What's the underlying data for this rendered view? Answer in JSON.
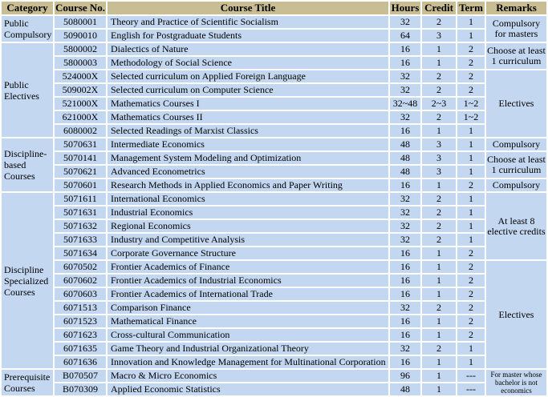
{
  "colors": {
    "header_bg": "#c9bd93",
    "row_bg": "#c3d7f0",
    "grid": "#ffffff",
    "text": "#000000"
  },
  "table": {
    "headers": [
      "Category",
      "Course No.",
      "Course Title",
      "Hours",
      "Credit",
      "Term",
      "Remarks"
    ],
    "rows": [
      {
        "no": "5080001",
        "title": "Theory and Practice of Scientific Socialism",
        "hours": "32",
        "credit": "2",
        "term": "1"
      },
      {
        "no": "5090010",
        "title": "English for Postgraduate Students",
        "hours": "64",
        "credit": "3",
        "term": "1"
      },
      {
        "no": "5800002",
        "title": "Dialectics of Nature",
        "hours": "16",
        "credit": "1",
        "term": "2"
      },
      {
        "no": "5800003",
        "title": "Methodology of Social Science",
        "hours": "16",
        "credit": "1",
        "term": "2"
      },
      {
        "no": "524000X",
        "title": "Selected curriculum on Applied Foreign Language",
        "hours": "32",
        "credit": "2",
        "term": "2"
      },
      {
        "no": "509002X",
        "title": "Selected curriculum on Computer Science",
        "hours": "32",
        "credit": "2",
        "term": "2"
      },
      {
        "no": "521000X",
        "title": "Mathematics Courses  I",
        "hours": "32~48",
        "credit": "2~3",
        "term": "1~2"
      },
      {
        "no": "621000X",
        "title": "Mathematics Courses II",
        "hours": "32",
        "credit": "2",
        "term": "1~2"
      },
      {
        "no": "6080002",
        "title": "Selected Readings of Marxist Classics",
        "hours": "16",
        "credit": "1",
        "term": "1"
      },
      {
        "no": "5070631",
        "title": "Intermediate Economics",
        "hours": "48",
        "credit": "3",
        "term": "1"
      },
      {
        "no": "5070141",
        "title": "Management System Modeling and Optimization",
        "hours": "48",
        "credit": "3",
        "term": "1"
      },
      {
        "no": "5070621",
        "title": "Advanced Econometrics",
        "hours": "48",
        "credit": "3",
        "term": "1"
      },
      {
        "no": "5070601",
        "title": "Research Methods in Applied Economics and Paper Writing",
        "hours": "16",
        "credit": "1",
        "term": "2"
      },
      {
        "no": "5071611",
        "title": "International Economics",
        "hours": "32",
        "credit": "2",
        "term": "1"
      },
      {
        "no": "5071631",
        "title": "Industrial Economics",
        "hours": "32",
        "credit": "2",
        "term": "1"
      },
      {
        "no": "5071632",
        "title": "Regional Economics",
        "hours": "32",
        "credit": "2",
        "term": "1"
      },
      {
        "no": "5071633",
        "title": "Industry and Competitive Analysis",
        "hours": "32",
        "credit": "2",
        "term": "1"
      },
      {
        "no": "5071634",
        "title": "Corporate Governance Structure",
        "hours": "16",
        "credit": "1",
        "term": "2"
      },
      {
        "no": "6070502",
        "title": "Frontier Academics  of Finance",
        "hours": "16",
        "credit": "1",
        "term": "2"
      },
      {
        "no": "6070602",
        "title": "Frontier Academics  of Industrial Economics",
        "hours": "16",
        "credit": "1",
        "term": "2"
      },
      {
        "no": "6070603",
        "title": "Frontier Academics  of International Trade",
        "hours": "16",
        "credit": "1",
        "term": "2"
      },
      {
        "no": "6071513",
        "title": "Comparison Finance",
        "hours": "32",
        "credit": "2",
        "term": "2"
      },
      {
        "no": "6071523",
        "title": "Mathematical Finance",
        "hours": "16",
        "credit": "1",
        "term": "2"
      },
      {
        "no": "6071623",
        "title": "Cross-cultural Communication",
        "hours": "16",
        "credit": "1",
        "term": "2"
      },
      {
        "no": "6071635",
        "title": "Game Theory and Industrial Organizational Theory",
        "hours": "32",
        "credit": "2",
        "term": "1"
      },
      {
        "no": "6071636",
        "title": "Innovation and Knowledge Management for Multinational Corporation",
        "hours": "16",
        "credit": "1",
        "term": "1"
      },
      {
        "no": "B070507",
        "title": "Macro & Micro Economics",
        "hours": "96",
        "credit": "1",
        "term": "---"
      },
      {
        "no": "B070309",
        "title": "Applied Economic Statistics",
        "hours": "48",
        "credit": "1",
        "term": "---"
      }
    ],
    "category_spans": [
      {
        "label": "Public Compulsory",
        "start": 0,
        "span": 2
      },
      {
        "label": "Public Electives",
        "start": 2,
        "span": 7
      },
      {
        "label": "Discipline-based Courses",
        "start": 9,
        "span": 4
      },
      {
        "label": "Discipline Specialized Courses",
        "start": 13,
        "span": 13
      },
      {
        "label": "Prerequisite Courses",
        "start": 26,
        "span": 2
      }
    ],
    "remarks_spans": [
      {
        "label": "Compulsory for masters",
        "start": 0,
        "span": 2,
        "small": false
      },
      {
        "label": "Choose at least 1 curriculum",
        "start": 2,
        "span": 2,
        "small": false
      },
      {
        "label": "Electives",
        "start": 4,
        "span": 5,
        "small": false
      },
      {
        "label": "Compulsory",
        "start": 9,
        "span": 1,
        "small": false
      },
      {
        "label": "Choose at least 1 curriculum",
        "start": 10,
        "span": 2,
        "small": false
      },
      {
        "label": "Compulsory",
        "start": 12,
        "span": 1,
        "small": false
      },
      {
        "label": "At least 8 elective credits",
        "start": 13,
        "span": 5,
        "small": false
      },
      {
        "label": "Electives",
        "start": 18,
        "span": 8,
        "small": false
      },
      {
        "label": "For master whose bachelor is not economics",
        "start": 26,
        "span": 2,
        "small": true
      }
    ]
  }
}
